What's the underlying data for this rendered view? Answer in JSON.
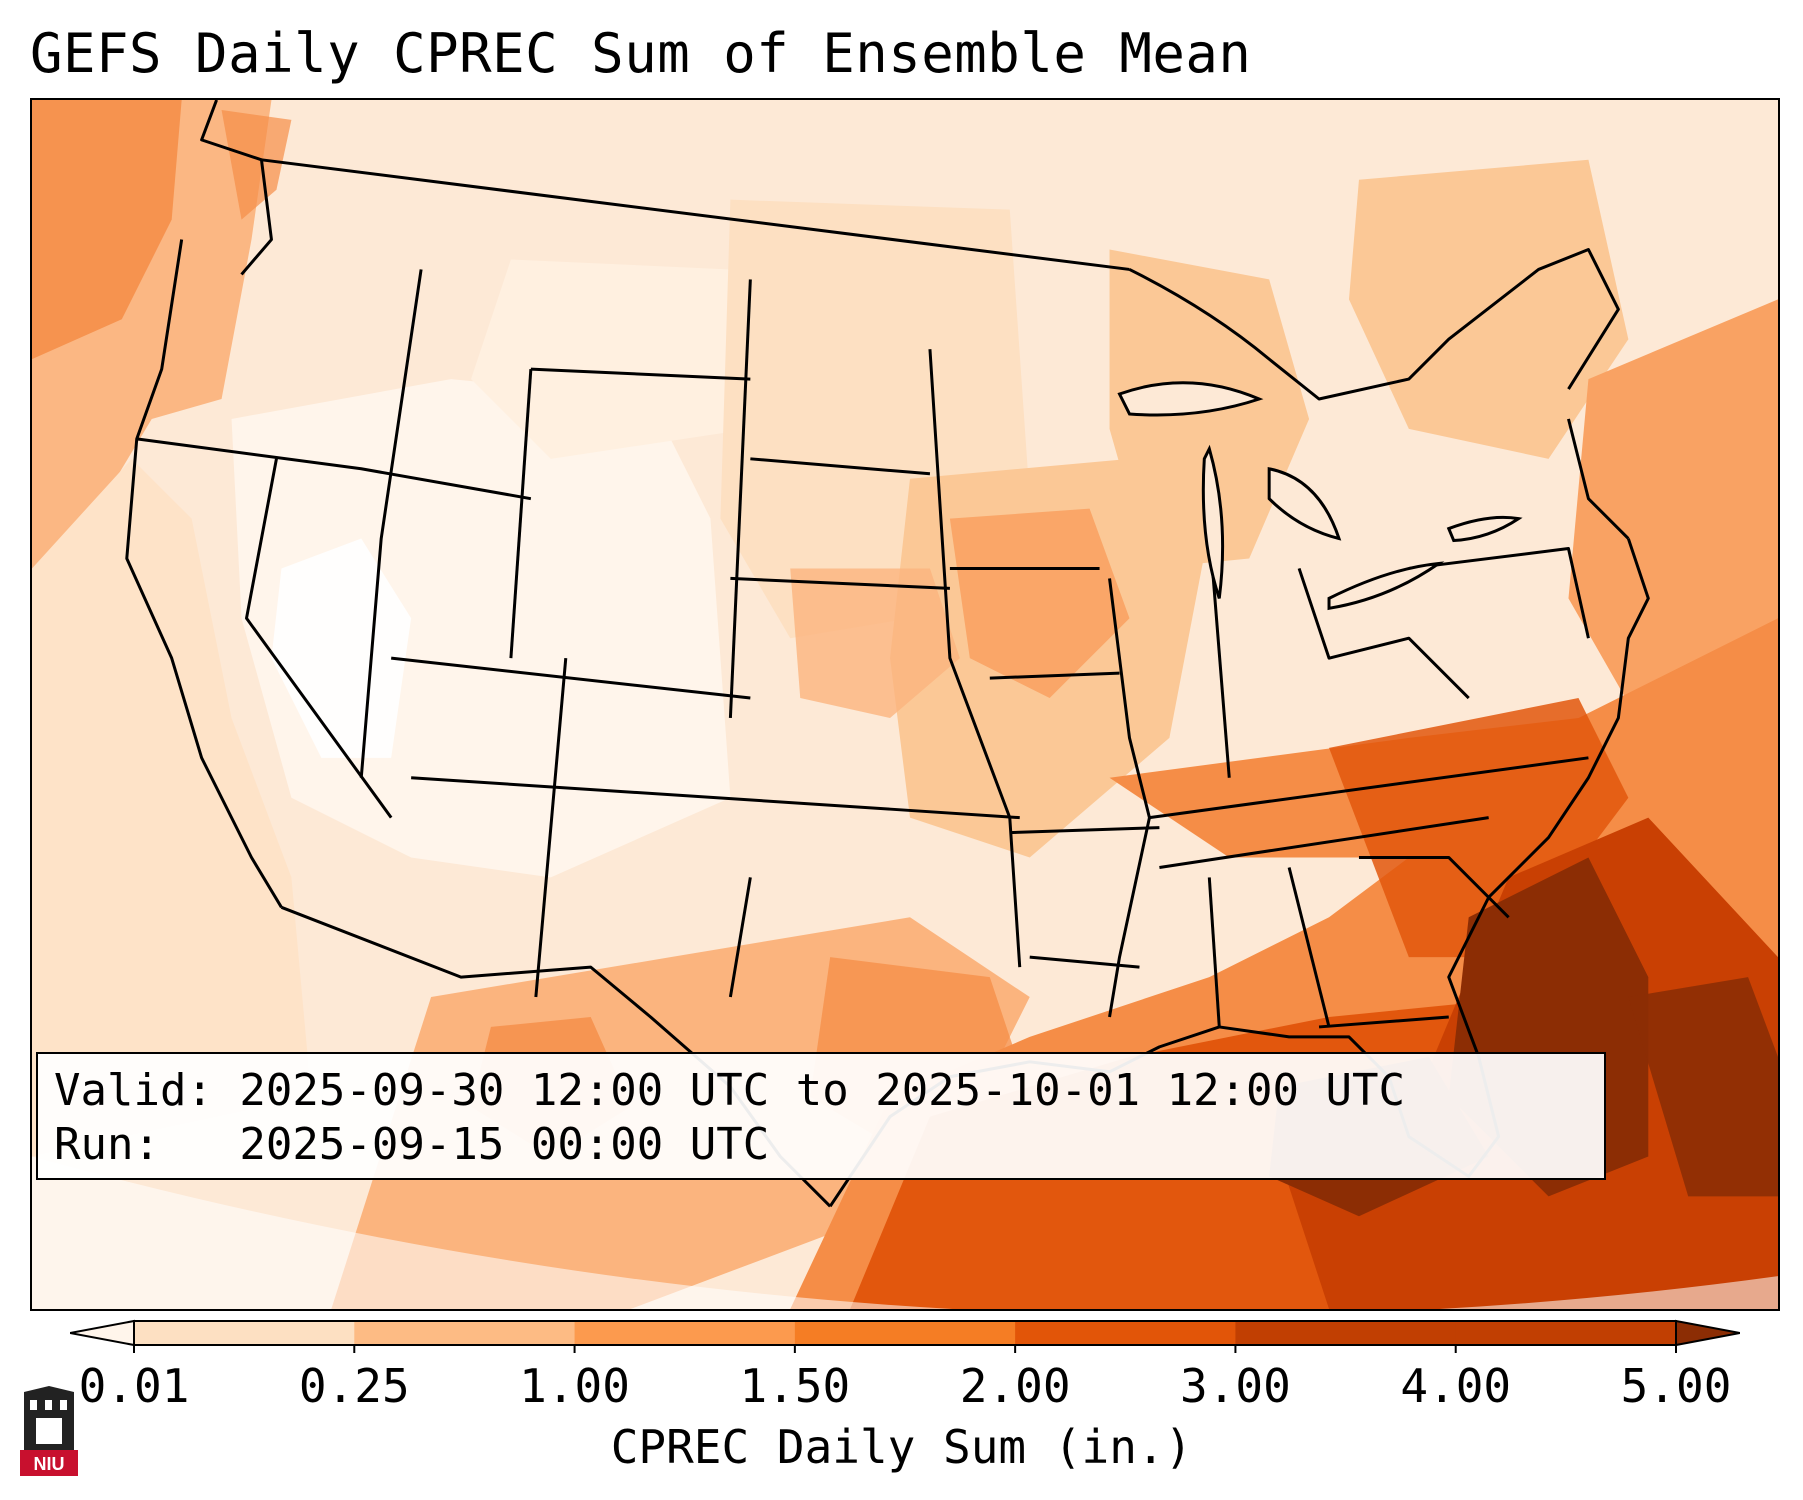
{
  "title": "GEFS Daily CPREC Sum of Ensemble Mean",
  "info": {
    "valid": "Valid: 2025-09-30 12:00 UTC to 2025-10-01 12:00 UTC",
    "run": "Run:   2025-09-15 00:00 UTC"
  },
  "colorbar": {
    "label": "CPREC Daily Sum (in.)",
    "ticks": [
      "0.01",
      "0.25",
      "1.00",
      "1.50",
      "2.00",
      "3.00",
      "4.00",
      "5.00"
    ],
    "colors": [
      "#fff5eb",
      "#fde0c2",
      "#fdbb84",
      "#fc9a4e",
      "#f57d24",
      "#e25508",
      "#c13f02",
      "#8c2d04"
    ],
    "extend": "both"
  },
  "map": {
    "projection": "lambert-conformal",
    "region": "CONUS",
    "colors": {
      "very_light": "#fff5eb",
      "light": "#fde5cc",
      "light_mid": "#fcd0a6",
      "mid": "#fbb47e",
      "orange": "#f58d47",
      "dark_orange": "#e2570d",
      "red_orange": "#c94003",
      "brown": "#8c2d04"
    }
  },
  "logo": {
    "name": "niu-logo",
    "text": "NIU",
    "color": "#c8102e"
  }
}
